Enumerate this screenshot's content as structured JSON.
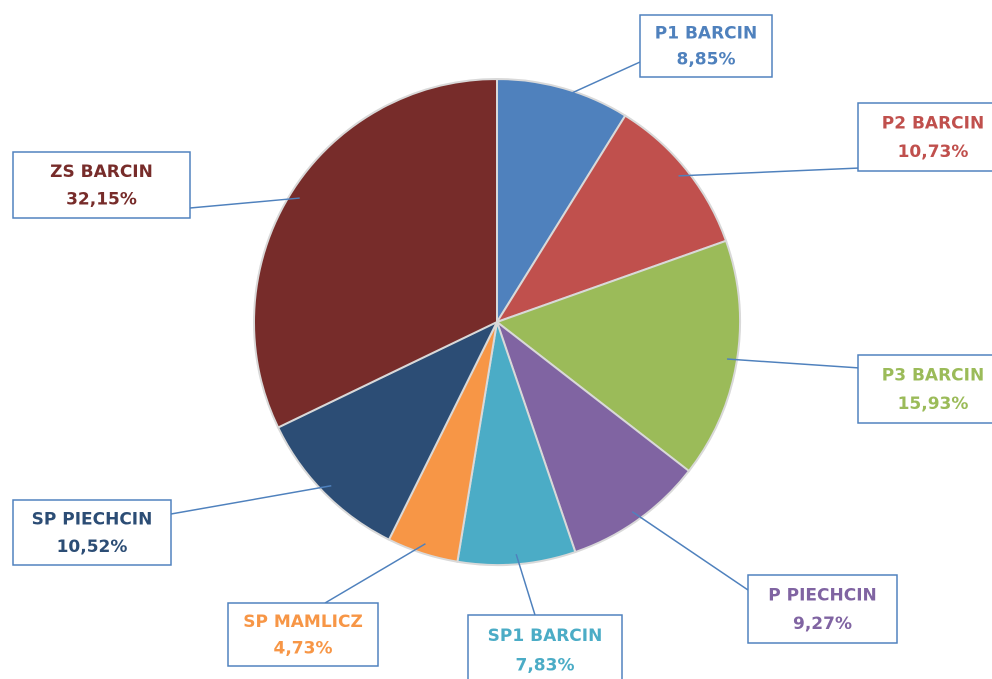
{
  "chart_data": {
    "type": "pie",
    "categories": [
      "P1 BARCIN",
      "P2 BARCIN",
      "P3 BARCIN",
      "P PIECHCIN",
      "SP1 BARCIN",
      "SP MAMLICZ",
      "SP PIECHCIN",
      "ZS BARCIN"
    ],
    "values": [
      8.85,
      10.73,
      15.93,
      9.27,
      7.83,
      4.73,
      10.52,
      32.15
    ],
    "value_labels": [
      "8,85%",
      "10,73%",
      "15,93%",
      "9,27%",
      "7,83%",
      "4,73%",
      "10,52%",
      "32,15%"
    ],
    "colors": [
      "#4f81bd",
      "#c0504d",
      "#9bbb59",
      "#8064a2",
      "#4bacc6",
      "#f79646",
      "#2c4d75",
      "#772c2a"
    ]
  }
}
